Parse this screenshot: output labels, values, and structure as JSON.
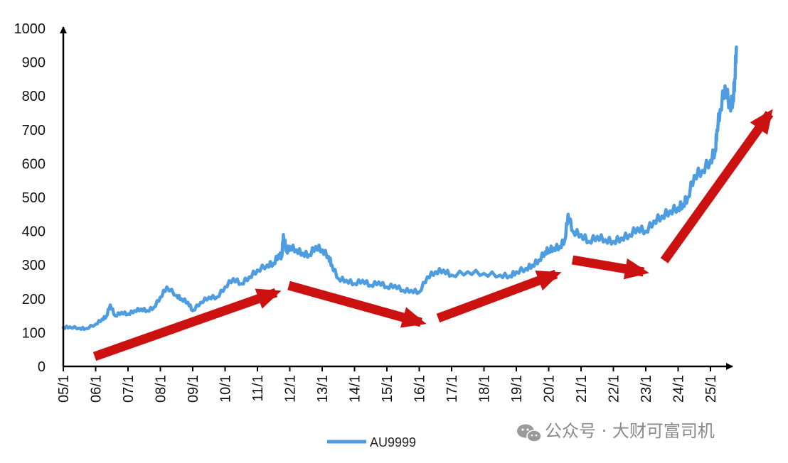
{
  "chart_data": {
    "type": "line",
    "title": "",
    "xlabel": "",
    "ylabel": "",
    "ylim": [
      0,
      1000
    ],
    "yticks": [
      0,
      100,
      200,
      300,
      400,
      500,
      600,
      700,
      800,
      900,
      1000
    ],
    "categories": [
      "05/1",
      "06/1",
      "07/1",
      "08/1",
      "09/1",
      "10/1",
      "11/1",
      "12/1",
      "13/1",
      "14/1",
      "15/1",
      "16/1",
      "17/1",
      "18/1",
      "19/1",
      "20/1",
      "21/1",
      "22/1",
      "23/1",
      "24/1",
      "25/1"
    ],
    "grid": false,
    "legend_position": "bottom",
    "series": [
      {
        "name": "AU9999",
        "color": "#4d9de0",
        "x": [
          2005.0,
          2005.2,
          2005.5,
          2005.7,
          2006.0,
          2006.2,
          2006.33,
          2006.45,
          2006.6,
          2006.8,
          2007.0,
          2007.2,
          2007.4,
          2007.6,
          2007.8,
          2008.0,
          2008.2,
          2008.5,
          2008.65,
          2008.85,
          2009.0,
          2009.25,
          2009.5,
          2009.75,
          2010.0,
          2010.25,
          2010.5,
          2010.75,
          2011.0,
          2011.3,
          2011.5,
          2011.65,
          2011.75,
          2011.8,
          2011.9,
          2012.0,
          2012.2,
          2012.4,
          2012.6,
          2012.8,
          2013.0,
          2013.2,
          2013.3,
          2013.5,
          2013.75,
          2014.0,
          2014.25,
          2014.5,
          2014.75,
          2015.0,
          2015.25,
          2015.5,
          2015.75,
          2016.0,
          2016.25,
          2016.5,
          2016.75,
          2017.0,
          2017.5,
          2018.0,
          2018.5,
          2018.8,
          2019.0,
          2019.3,
          2019.5,
          2019.7,
          2019.9,
          2020.0,
          2020.15,
          2020.35,
          2020.5,
          2020.6,
          2020.75,
          2021.0,
          2021.25,
          2021.5,
          2021.75,
          2022.0,
          2022.25,
          2022.5,
          2022.75,
          2023.0,
          2023.25,
          2023.5,
          2023.75,
          2024.0,
          2024.15,
          2024.3,
          2024.5,
          2024.75,
          2025.0,
          2025.15,
          2025.2,
          2025.3,
          2025.45,
          2025.6,
          2025.7,
          2025.75,
          2025.8
        ],
        "y": [
          115,
          117,
          113,
          112,
          125,
          140,
          148,
          182,
          150,
          160,
          155,
          165,
          170,
          165,
          175,
          205,
          235,
          210,
          200,
          190,
          165,
          190,
          205,
          205,
          235,
          260,
          245,
          265,
          285,
          300,
          305,
          330,
          325,
          390,
          340,
          355,
          345,
          335,
          330,
          355,
          345,
          325,
          300,
          260,
          255,
          245,
          255,
          240,
          250,
          235,
          240,
          225,
          225,
          220,
          265,
          280,
          285,
          270,
          280,
          275,
          270,
          268,
          280,
          290,
          300,
          315,
          340,
          345,
          350,
          355,
          375,
          450,
          400,
          390,
          370,
          385,
          375,
          370,
          380,
          390,
          410,
          400,
          430,
          445,
          460,
          470,
          480,
          500,
          565,
          580,
          610,
          640,
          700,
          760,
          830,
          770,
          790,
          850,
          945
        ]
      }
    ],
    "legend": [
      {
        "label": "AU9999"
      }
    ]
  },
  "watermark": {
    "text": "公众号 · 大财可富司机",
    "icon": "wechat-icon"
  }
}
